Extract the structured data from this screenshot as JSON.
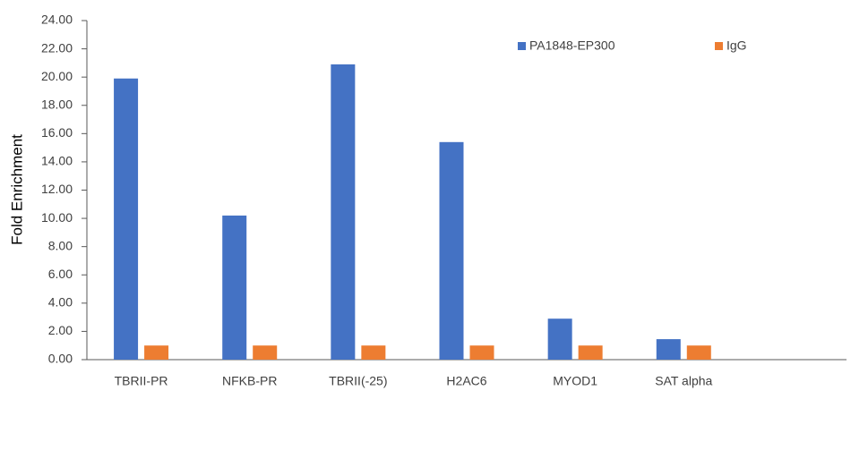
{
  "chart_data": {
    "type": "bar",
    "y_label": "Fold Enrichment",
    "categories": [
      "TBRII-PR",
      "NFKB-PR",
      "TBRII(-25)",
      "H2AC6",
      "MYOD1",
      "SAT alpha",
      null
    ],
    "series": [
      {
        "name": "PA1848-EP300",
        "color": "#4472c4",
        "values": [
          19.9,
          10.2,
          20.9,
          15.4,
          2.9,
          1.45,
          null
        ]
      },
      {
        "name": "IgG",
        "color": "#ed7d31",
        "values": [
          1,
          1,
          1,
          1,
          1,
          1,
          null
        ]
      }
    ],
    "ylim": [
      0,
      24
    ],
    "yticks": [
      {
        "value": 0,
        "label": "0.00"
      },
      {
        "value": 2,
        "label": "2.00"
      },
      {
        "value": 4,
        "label": "4.00"
      },
      {
        "value": 6,
        "label": "6.00"
      },
      {
        "value": 8,
        "label": "8.00"
      },
      {
        "value": 10,
        "label": "10.00"
      },
      {
        "value": 12,
        "label": "12.00"
      },
      {
        "value": 14,
        "label": "14.00"
      },
      {
        "value": 16,
        "label": "16.00"
      },
      {
        "value": 18,
        "label": "18.00"
      },
      {
        "value": 20,
        "label": "20.00"
      },
      {
        "value": 22,
        "label": "22.00"
      },
      {
        "value": 24,
        "label": "24.00"
      }
    ],
    "grid": false,
    "legend": "top-right"
  }
}
